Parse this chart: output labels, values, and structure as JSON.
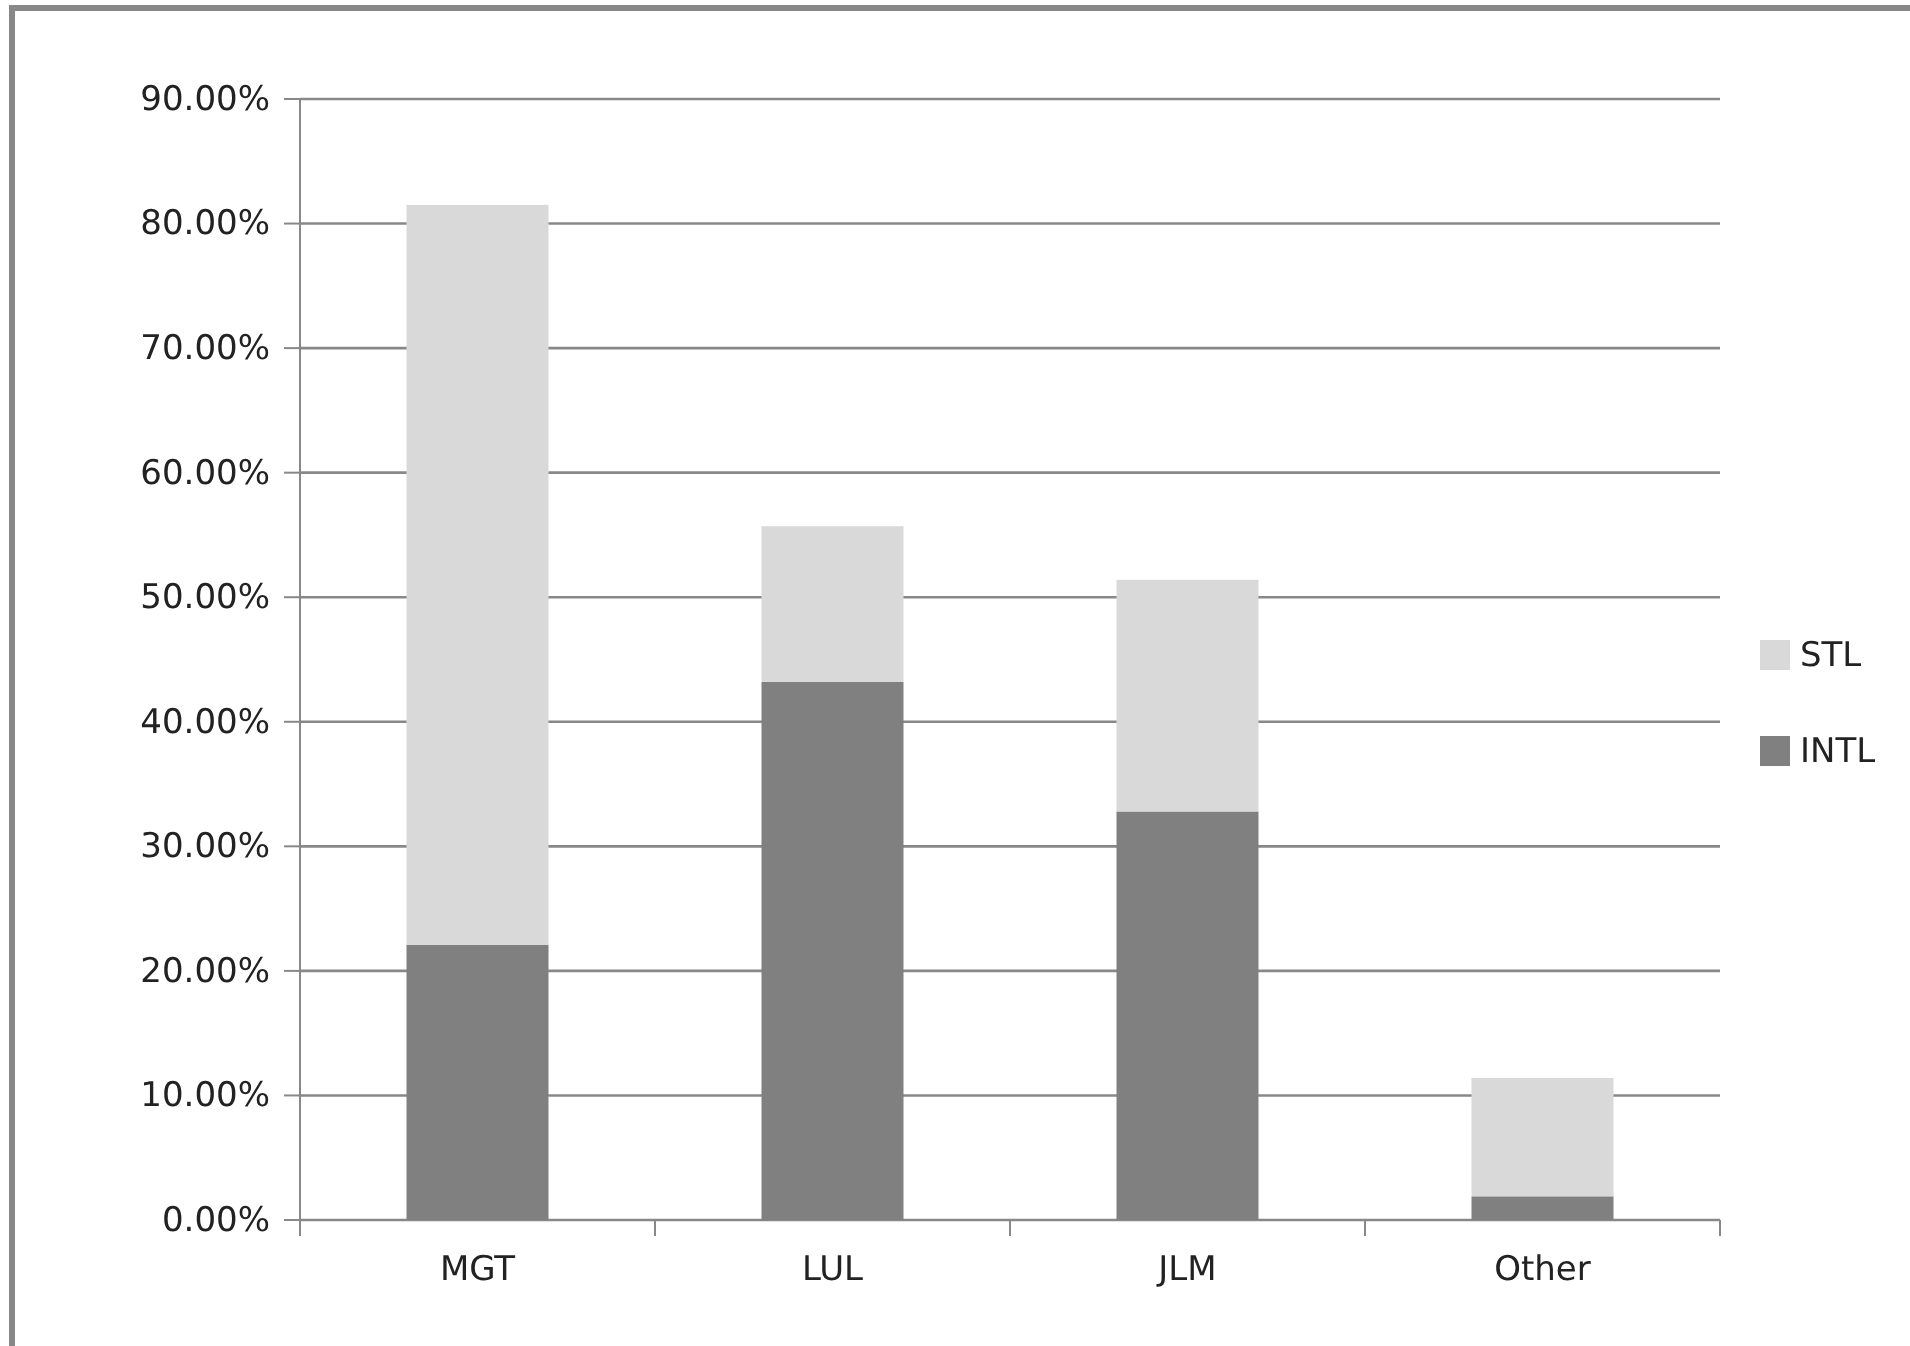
{
  "chart_data": {
    "type": "bar",
    "stacked": true,
    "categories": [
      "MGT",
      "LUL",
      "JLM",
      "Other"
    ],
    "series": [
      {
        "name": "INTL",
        "color": "#808080",
        "values": [
          22.1,
          43.2,
          32.8,
          1.9
        ]
      },
      {
        "name": "STL",
        "color": "#d9d9d9",
        "values": [
          59.4,
          12.5,
          18.6,
          9.5
        ]
      }
    ],
    "ylim": [
      0,
      90
    ],
    "yticks": [
      {
        "value": 0,
        "label": "0.00%"
      },
      {
        "value": 10,
        "label": "10.00%"
      },
      {
        "value": 20,
        "label": "20.00%"
      },
      {
        "value": 30,
        "label": "30.00%"
      },
      {
        "value": 40,
        "label": "40.00%"
      },
      {
        "value": 50,
        "label": "50.00%"
      },
      {
        "value": 60,
        "label": "60.00%"
      },
      {
        "value": 70,
        "label": "70.00%"
      },
      {
        "value": 80,
        "label": "80.00%"
      },
      {
        "value": 90,
        "label": "90.00%"
      }
    ],
    "grid": "y",
    "legend": "right"
  }
}
